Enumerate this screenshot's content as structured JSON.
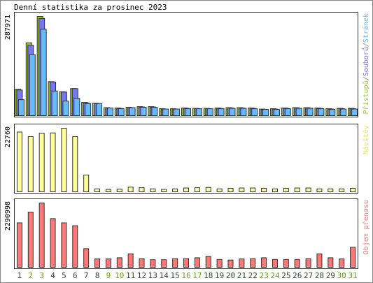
{
  "title": "Denní statistika za prosinec 2023",
  "chart_data": [
    {
      "type": "bar",
      "panel": "top",
      "ymax_label": "287971",
      "ylim": [
        0,
        287971
      ],
      "categories": [
        "1",
        "2",
        "3",
        "4",
        "5",
        "6",
        "7",
        "8",
        "9",
        "10",
        "11",
        "12",
        "13",
        "14",
        "15",
        "16",
        "17",
        "18",
        "19",
        "20",
        "21",
        "22",
        "23",
        "24",
        "25",
        "26",
        "27",
        "28",
        "29",
        "30",
        "31"
      ],
      "weekend_days": [
        "2",
        "3",
        "9",
        "10",
        "16",
        "17",
        "23",
        "24",
        "30",
        "31"
      ],
      "legend": [
        "Přístupů",
        "Souborů",
        "Stránek"
      ],
      "series": [
        {
          "name": "Přístupů",
          "color": "#99cc33",
          "values": [
            78000,
            212000,
            287971,
            100000,
            71000,
            80000,
            40000,
            38000,
            25000,
            24000,
            26000,
            28000,
            28000,
            22000,
            22000,
            24000,
            23000,
            23000,
            24000,
            25000,
            25000,
            24000,
            21000,
            22000,
            24000,
            25000,
            25000,
            24000,
            22000,
            23000,
            23000
          ]
        },
        {
          "name": "Souborů",
          "color": "#7777ee",
          "values": [
            76000,
            205000,
            282000,
            99000,
            70000,
            80000,
            39000,
            37000,
            24000,
            23000,
            25000,
            27000,
            27000,
            21000,
            21000,
            23000,
            22000,
            22000,
            23000,
            24000,
            24000,
            23000,
            20000,
            21000,
            23000,
            24000,
            24000,
            23000,
            21000,
            22000,
            22000
          ]
        },
        {
          "name": "Stránek",
          "color": "#66bbff",
          "values": [
            48000,
            178000,
            251000,
            73000,
            44000,
            52000,
            37000,
            37000,
            24000,
            22000,
            25000,
            26000,
            26000,
            21000,
            21000,
            22000,
            22000,
            22000,
            22000,
            23000,
            23000,
            22000,
            20000,
            20000,
            22000,
            23000,
            23000,
            22000,
            20000,
            21000,
            21000
          ]
        }
      ]
    },
    {
      "type": "bar",
      "panel": "middle",
      "ymax_label": "22760",
      "ylim": [
        0,
        22760
      ],
      "legend": [
        "Návštěv"
      ],
      "categories": [
        "1",
        "2",
        "3",
        "4",
        "5",
        "6",
        "7",
        "8",
        "9",
        "10",
        "11",
        "12",
        "13",
        "14",
        "15",
        "16",
        "17",
        "18",
        "19",
        "20",
        "21",
        "22",
        "23",
        "24",
        "25",
        "26",
        "27",
        "28",
        "29",
        "30",
        "31"
      ],
      "series": [
        {
          "name": "Návštěv",
          "color": "#ffff99",
          "values": [
            21400,
            19800,
            21000,
            21100,
            22760,
            19800,
            6200,
            1300,
            1100,
            1200,
            1900,
            1700,
            1300,
            1100,
            1300,
            1600,
            1700,
            1800,
            1300,
            1500,
            1600,
            1600,
            1500,
            1300,
            1500,
            1600,
            1600,
            1300,
            1300,
            1300,
            1500
          ]
        }
      ]
    },
    {
      "type": "bar",
      "panel": "bottom",
      "ymax_label": "2290998",
      "ylim": [
        0,
        2290998
      ],
      "legend": [
        "Objem přenosu"
      ],
      "categories": [
        "1",
        "2",
        "3",
        "4",
        "5",
        "6",
        "7",
        "8",
        "9",
        "10",
        "11",
        "12",
        "13",
        "14",
        "15",
        "16",
        "17",
        "18",
        "19",
        "20",
        "21",
        "22",
        "23",
        "24",
        "25",
        "26",
        "27",
        "28",
        "29",
        "30",
        "31"
      ],
      "series": [
        {
          "name": "Objem přenosu",
          "color": "#ff7777",
          "values": [
            1590000,
            1970000,
            2290998,
            1740000,
            1590000,
            1490000,
            680000,
            320000,
            320000,
            360000,
            500000,
            330000,
            290000,
            290000,
            330000,
            330000,
            360000,
            410000,
            300000,
            280000,
            320000,
            330000,
            360000,
            300000,
            300000,
            300000,
            330000,
            500000,
            360000,
            320000,
            730000
          ]
        }
      ]
    }
  ],
  "colors": {
    "weekday_label": "#2c4a2c",
    "weekend_label": "#66aa00",
    "frame": "#333333"
  }
}
